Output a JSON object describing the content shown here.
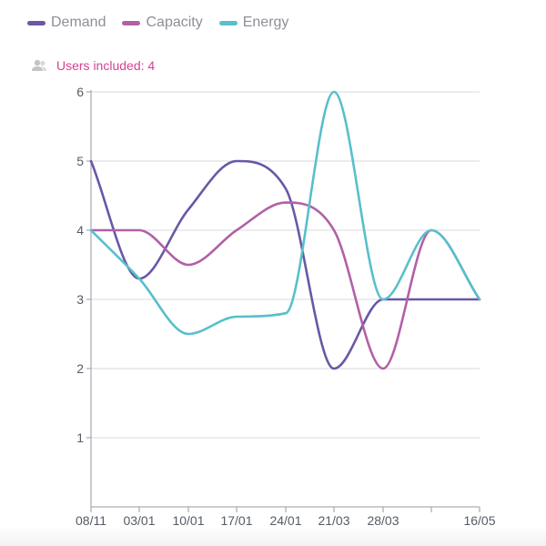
{
  "legend": {
    "items": [
      {
        "label": "Demand",
        "color": "#6a57a6"
      },
      {
        "label": "Capacity",
        "color": "#b160a6"
      },
      {
        "label": "Energy",
        "color": "#58bfcc"
      }
    ]
  },
  "users": {
    "label": "Users included: 4",
    "icon": "users-icon"
  },
  "chart_data": {
    "type": "line",
    "categories": [
      "08/11",
      "03/01",
      "10/01",
      "17/01",
      "24/01",
      "21/03",
      "28/03",
      "",
      "16/05"
    ],
    "x_tick_labels": [
      "08/11",
      "03/01",
      "10/01",
      "17/01",
      "24/01",
      "21/03",
      "28/03",
      "16/05"
    ],
    "ylim": [
      0,
      6
    ],
    "yticks": [
      1,
      2,
      3,
      4,
      5,
      6
    ],
    "grid": true,
    "legend_position": "top-left",
    "series": [
      {
        "name": "Demand",
        "color": "#6a57a6",
        "values": [
          5,
          3.3,
          4.3,
          5,
          4.6,
          2,
          3,
          3,
          3
        ]
      },
      {
        "name": "Capacity",
        "color": "#b160a6",
        "values": [
          4,
          4,
          3.5,
          4,
          4.4,
          4,
          2,
          4,
          3
        ]
      },
      {
        "name": "Energy",
        "color": "#58bfcc",
        "values": [
          4,
          3.3,
          2.5,
          2.75,
          2.8,
          6,
          3,
          4,
          3
        ]
      }
    ]
  }
}
